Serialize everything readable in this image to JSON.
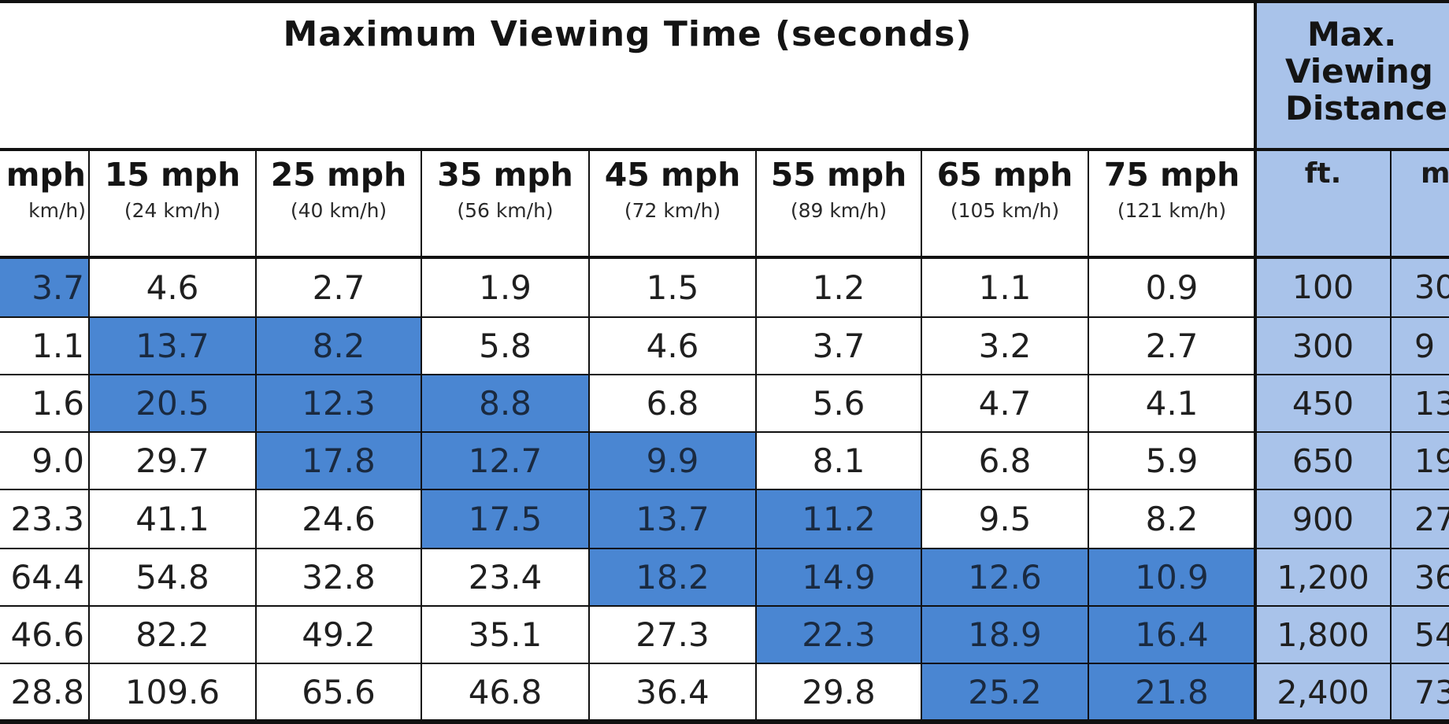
{
  "title": "Maximum Viewing Time (seconds)",
  "distance_header": [
    "Max.",
    "Viewing",
    "Distance"
  ],
  "speeds": [
    {
      "mph": "mph",
      "kmh": "km/h)"
    },
    {
      "mph": "15 mph",
      "kmh": "(24 km/h)"
    },
    {
      "mph": "25 mph",
      "kmh": "(40 km/h)"
    },
    {
      "mph": "35 mph",
      "kmh": "(56 km/h)"
    },
    {
      "mph": "45 mph",
      "kmh": "(72 km/h)"
    },
    {
      "mph": "55 mph",
      "kmh": "(89 km/h)"
    },
    {
      "mph": "65 mph",
      "kmh": "(105 km/h)"
    },
    {
      "mph": "75 mph",
      "kmh": "(121 km/h)"
    }
  ],
  "units": [
    "ft.",
    "m"
  ],
  "rows": [
    {
      "times": [
        "3.7",
        "4.6",
        "2.7",
        "1.9",
        "1.5",
        "1.2",
        "1.1",
        "0.9"
      ],
      "highlight": [
        0
      ],
      "ft": "100",
      "m": "30"
    },
    {
      "times": [
        "1.1",
        "13.7",
        "8.2",
        "5.8",
        "4.6",
        "3.7",
        "3.2",
        "2.7"
      ],
      "highlight": [
        1,
        2
      ],
      "ft": "300",
      "m": "9"
    },
    {
      "times": [
        "1.6",
        "20.5",
        "12.3",
        "8.8",
        "6.8",
        "5.6",
        "4.7",
        "4.1"
      ],
      "highlight": [
        1,
        2,
        3
      ],
      "ft": "450",
      "m": "13"
    },
    {
      "times": [
        "9.0",
        "29.7",
        "17.8",
        "12.7",
        "9.9",
        "8.1",
        "6.8",
        "5.9"
      ],
      "highlight": [
        2,
        3,
        4
      ],
      "ft": "650",
      "m": "19"
    },
    {
      "times": [
        "23.3",
        "41.1",
        "24.6",
        "17.5",
        "13.7",
        "11.2",
        "9.5",
        "8.2"
      ],
      "highlight": [
        3,
        4,
        5
      ],
      "ft": "900",
      "m": "27"
    },
    {
      "times": [
        "64.4",
        "54.8",
        "32.8",
        "23.4",
        "18.2",
        "14.9",
        "12.6",
        "10.9"
      ],
      "highlight": [
        4,
        5,
        6,
        7
      ],
      "ft": "1,200",
      "m": "36"
    },
    {
      "times": [
        "46.6",
        "82.2",
        "49.2",
        "35.1",
        "27.3",
        "22.3",
        "18.9",
        "16.4"
      ],
      "highlight": [
        5,
        6,
        7
      ],
      "ft": "1,800",
      "m": "54"
    },
    {
      "times": [
        "28.8",
        "109.6",
        "65.6",
        "46.8",
        "36.4",
        "29.8",
        "25.2",
        "21.8"
      ],
      "highlight": [
        6,
        7
      ],
      "ft": "2,400",
      "m": "73"
    }
  ],
  "colors": {
    "highlight": "#4a86d2",
    "distance_bg": "#a9c3ea",
    "grid": "#111111"
  }
}
